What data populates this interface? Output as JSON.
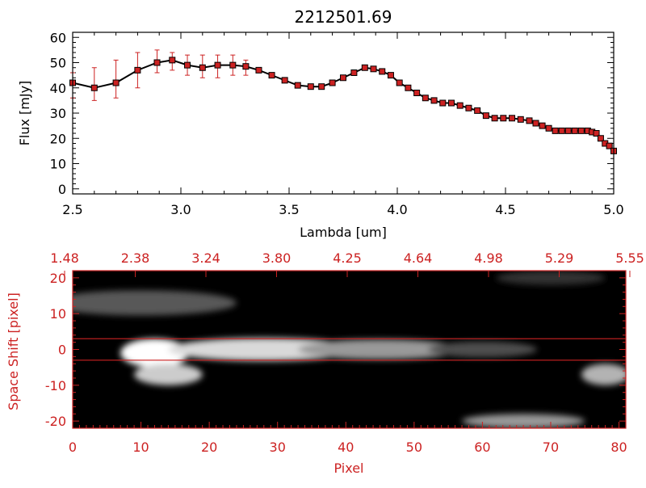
{
  "colors": {
    "axis_top": "#000000",
    "axis_bottom": "#cc2222",
    "marker": "#cc2222",
    "line": "#000000"
  },
  "chart_data": [
    {
      "type": "line",
      "title": "2212501.69",
      "xlabel": "Lambda [um]",
      "ylabel": "Flux [mJy]",
      "xlim": [
        2.5,
        5.0
      ],
      "ylim": [
        -2,
        62
      ],
      "x_ticks": [
        "2.5",
        "3.0",
        "3.5",
        "4.0",
        "4.5",
        "5.0"
      ],
      "y_ticks": [
        "0",
        "10",
        "20",
        "30",
        "40",
        "50",
        "60"
      ],
      "series": [
        {
          "x": [
            2.5,
            2.6,
            2.7,
            2.8,
            2.89,
            2.96,
            3.03,
            3.1,
            3.17,
            3.24,
            3.3,
            3.36,
            3.42,
            3.48,
            3.54,
            3.6,
            3.65,
            3.7,
            3.75,
            3.8,
            3.85,
            3.89,
            3.93,
            3.97,
            4.01,
            4.05,
            4.09,
            4.13,
            4.17,
            4.21,
            4.25,
            4.29,
            4.33,
            4.37,
            4.41,
            4.45,
            4.49,
            4.53,
            4.57,
            4.61,
            4.64,
            4.67,
            4.7,
            4.73,
            4.76,
            4.79,
            4.82,
            4.85,
            4.88,
            4.9,
            4.92,
            4.94,
            4.96,
            4.98,
            5.0
          ],
          "y": [
            42,
            40,
            42,
            47,
            50,
            51,
            49,
            48,
            49,
            49,
            48.5,
            47,
            45,
            43,
            41,
            40.5,
            40.5,
            42,
            44,
            46,
            48,
            47.5,
            46.5,
            45,
            42,
            40,
            38,
            36,
            35,
            34,
            34,
            33,
            32,
            31,
            29,
            28,
            28,
            28,
            27.5,
            27,
            26,
            25,
            24,
            23,
            23,
            23,
            23,
            23,
            23,
            22.5,
            22,
            20,
            18,
            17,
            15
          ],
          "error_x": [
            2.5,
            2.6,
            2.7,
            2.8,
            2.89,
            2.96,
            3.03,
            3.1,
            3.17,
            3.24,
            3.3
          ],
          "error_lo": [
            36,
            35,
            36,
            40,
            46,
            47,
            45,
            44,
            44,
            45,
            45
          ],
          "error_hi": [
            46,
            48,
            51,
            54,
            55,
            54,
            53,
            53,
            53,
            53,
            51
          ]
        }
      ]
    },
    {
      "type": "heatmap",
      "xlabel": "Pixel",
      "ylabel": "Space Shift [pixel]",
      "xlim": [
        0,
        81
      ],
      "ylim": [
        -22,
        22
      ],
      "x_ticks": [
        "0",
        "10",
        "20",
        "30",
        "40",
        "50",
        "60",
        "70",
        "80"
      ],
      "y_ticks": [
        "-20",
        "-10",
        "0",
        "10",
        "20"
      ],
      "top_ticks": [
        "1.48",
        "2.38",
        "3.24",
        "3.80",
        "4.25",
        "4.64",
        "4.98",
        "5.29",
        "5.55"
      ],
      "extraction_lines": [
        3,
        -3
      ],
      "blobs": [
        {
          "x": 12,
          "y": -1,
          "rx": 5,
          "ry": 4,
          "intensity": 1.0
        },
        {
          "x": 28,
          "y": 0,
          "rx": 14,
          "ry": 3.2,
          "intensity": 0.85
        },
        {
          "x": 45,
          "y": 0,
          "rx": 12,
          "ry": 2.8,
          "intensity": 0.6
        },
        {
          "x": 60,
          "y": 0,
          "rx": 8,
          "ry": 2.2,
          "intensity": 0.3
        },
        {
          "x": 14,
          "y": -7,
          "rx": 5,
          "ry": 3,
          "intensity": 0.8
        },
        {
          "x": 78,
          "y": -7,
          "rx": 3.5,
          "ry": 3,
          "intensity": 0.7
        },
        {
          "x": 66,
          "y": -20,
          "rx": 9,
          "ry": 2,
          "intensity": 0.6
        },
        {
          "x": 10,
          "y": 13,
          "rx": 14,
          "ry": 3.5,
          "intensity": 0.35
        },
        {
          "x": 70,
          "y": 20,
          "rx": 8,
          "ry": 2,
          "intensity": 0.2
        }
      ]
    }
  ]
}
